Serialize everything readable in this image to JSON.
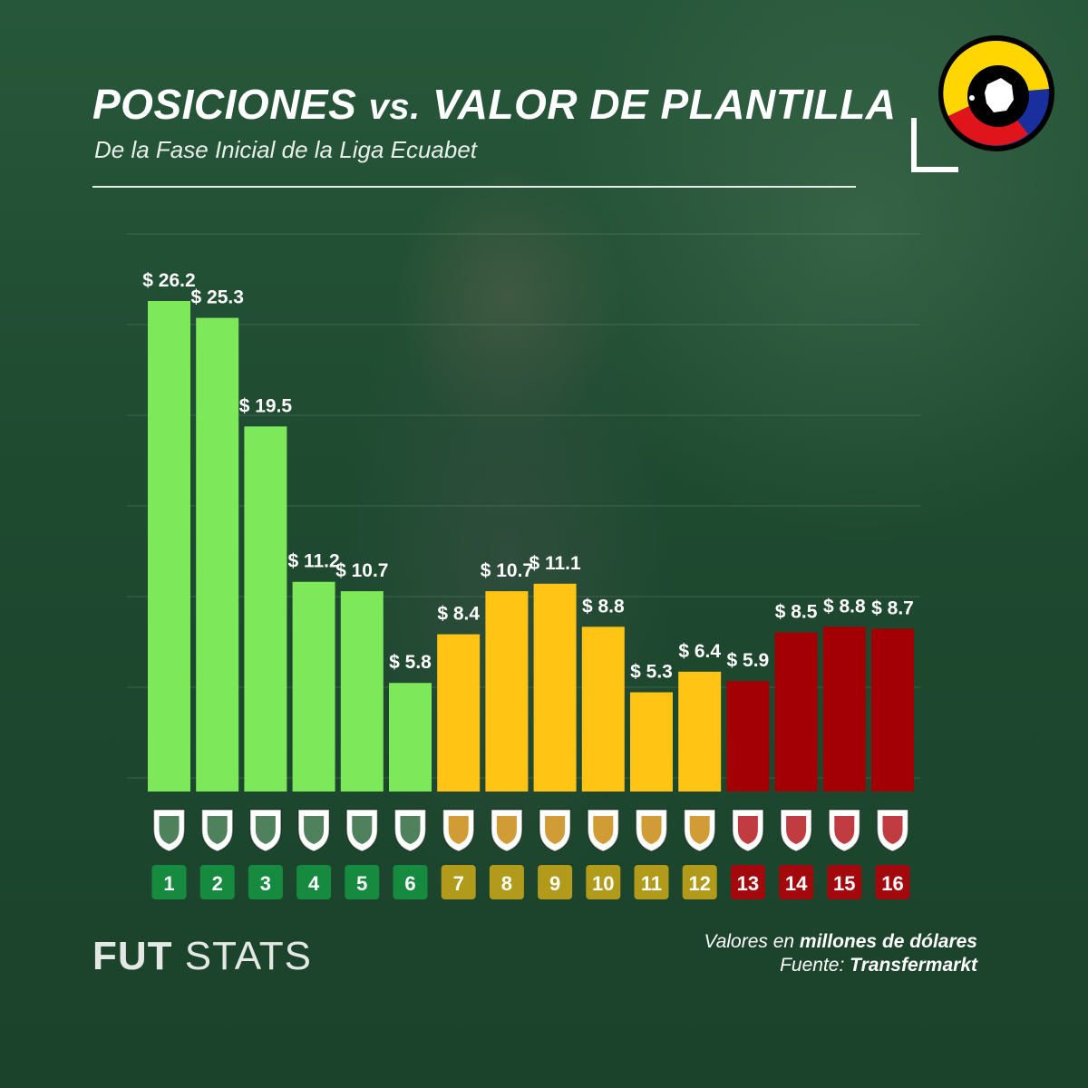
{
  "header": {
    "title_part1": "POSICIONES ",
    "title_vs": "vs.",
    "title_part2": " VALOR DE PLANTILLA",
    "subtitle": "De la Fase Inicial de la Liga Ecuabet"
  },
  "footer": {
    "brand_bold": "FUT",
    "brand_rest": " STATS",
    "note_prefix": "Valores en ",
    "note_bold": "millones de dólares",
    "source_prefix": "Fuente: ",
    "source_bold": "Transfermarkt"
  },
  "colors": {
    "green": "#7de85a",
    "yellow": "#ffc414",
    "red": "#a30005",
    "badge_green": "#168a3e",
    "badge_yellow": "#b29a1a",
    "badge_red": "#a3080c"
  },
  "chart_data": {
    "type": "bar",
    "title": "POSICIONES vs. VALOR DE PLANTILLA",
    "subtitle": "De la Fase Inicial de la Liga Ecuabet",
    "categories": [
      "1",
      "2",
      "3",
      "4",
      "5",
      "6",
      "7",
      "8",
      "9",
      "10",
      "11",
      "12",
      "13",
      "14",
      "15",
      "16"
    ],
    "values": [
      26.2,
      25.3,
      19.5,
      11.2,
      10.7,
      5.8,
      8.4,
      10.7,
      11.1,
      8.8,
      5.3,
      6.4,
      5.9,
      8.5,
      8.8,
      8.7
    ],
    "value_labels": [
      "$ 26.2",
      "$ 25.3",
      "$ 19.5",
      "$ 11.2",
      "$ 10.7",
      "$ 5.8",
      "$ 8.4",
      "$ 10.7",
      "$ 11.1",
      "$ 8.8",
      "$ 5.3",
      "$ 6.4",
      "$ 5.9",
      "$ 8.5",
      "$ 8.8",
      "$ 8.7"
    ],
    "groups": [
      "green",
      "green",
      "green",
      "green",
      "green",
      "green",
      "yellow",
      "yellow",
      "yellow",
      "yellow",
      "yellow",
      "yellow",
      "red",
      "red",
      "red",
      "red"
    ],
    "ylim": [
      0,
      26.2
    ],
    "grid": true,
    "xlabel": "",
    "ylabel": ""
  }
}
